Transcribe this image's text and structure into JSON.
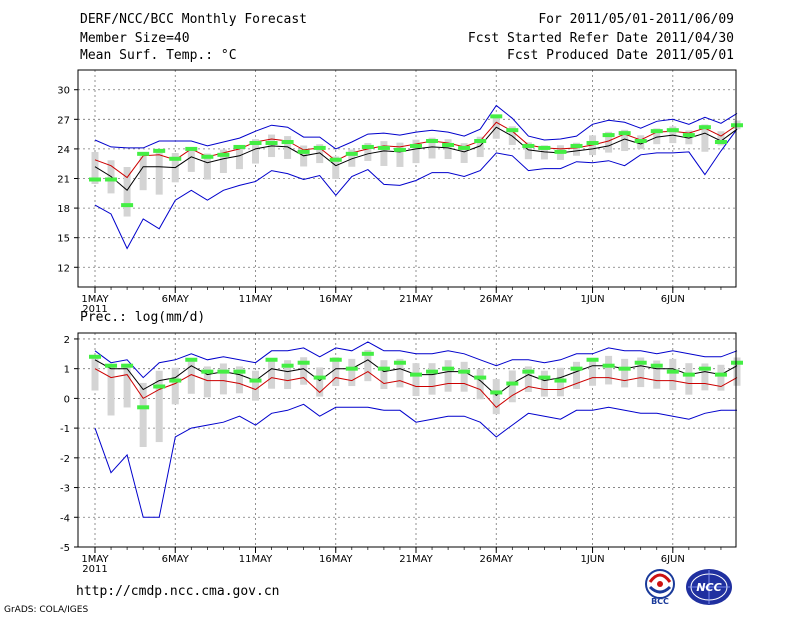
{
  "header": {
    "title": "DERF/NCC/BCC Monthly Forecast",
    "member_size": "Member Size=40",
    "variable": "Mean Surf. Temp.: °C",
    "forecast_period": "For 2011/05/01-2011/06/09",
    "started_refer": "Fcst Started Refer Date 2011/04/30",
    "produced": "Fcst Produced Date 2011/05/01"
  },
  "footer": {
    "url": "http://cmdp.ncc.cma.gov.cn",
    "credit": "GrADS: COLA/IGES",
    "logo_bcc": "BCC",
    "logo_ncc": "NCC"
  },
  "colors": {
    "ensemble_mean": "#000000",
    "spread_bounds": "#0000cc",
    "median": "#cc0000",
    "observed": "#44ee44",
    "member_range": "#d4d4d4"
  },
  "chart_data": [
    {
      "type": "line",
      "title": "Mean Surf. Temp.: °C",
      "xlabel": "",
      "ylabel": "°C",
      "ylim": [
        10,
        32
      ],
      "yticks": [
        "30",
        "27",
        "24",
        "21",
        "18",
        "15",
        "12"
      ],
      "ytick_values": [
        30,
        27,
        24,
        21,
        18,
        15,
        12
      ],
      "xticks": [
        "1MAY",
        "6MAY",
        "11MAY",
        "16MAY",
        "21MAY",
        "26MAY",
        "1JUN",
        "6JUN"
      ],
      "xtick_days": [
        1,
        6,
        11,
        16,
        21,
        26,
        32,
        37
      ],
      "year_label": "2011",
      "days": 40,
      "series": [
        {
          "name": "ensemble mean",
          "values": [
            22.2,
            21.2,
            19.8,
            22.2,
            22.2,
            22.1,
            23.2,
            22.6,
            23,
            23.3,
            24,
            24.3,
            24.2,
            23.3,
            23.6,
            22.3,
            23,
            23.5,
            23.8,
            23.7,
            24,
            24.2,
            24.1,
            23.7,
            24.3,
            26.2,
            25.3,
            23.9,
            23.7,
            23.6,
            23.8,
            24,
            24.3,
            25,
            24.5,
            25.2,
            25.4,
            25.1,
            25.6,
            24.8,
            26
          ]
        },
        {
          "name": "upper",
          "values": [
            24.9,
            24.2,
            24.1,
            24.1,
            24.8,
            24.8,
            24.8,
            24.3,
            24.7,
            25.1,
            25.8,
            26.4,
            26.2,
            25.2,
            25.2,
            24,
            24.7,
            25.5,
            25.6,
            25.4,
            25.7,
            25.9,
            25.7,
            25.3,
            26,
            28.4,
            27.1,
            25.3,
            24.9,
            25,
            25.3,
            26.5,
            26.9,
            26.7,
            26.1,
            26.8,
            27,
            26.5,
            27.2,
            26.6,
            27.6
          ]
        },
        {
          "name": "lower",
          "values": [
            18.3,
            17.4,
            13.9,
            16.9,
            15.9,
            18.8,
            19.8,
            18.8,
            19.8,
            20.3,
            20.7,
            21.8,
            21.5,
            20.9,
            21.3,
            19.3,
            21.2,
            21.9,
            20.4,
            20.3,
            20.8,
            21.6,
            21.6,
            21.2,
            21.8,
            23.6,
            23.3,
            21.8,
            22,
            22,
            22.7,
            22.6,
            22.8,
            22.3,
            23.4,
            23.6,
            23.6,
            23.7,
            21.4,
            23.8,
            26
          ]
        },
        {
          "name": "median",
          "values": [
            22.9,
            22.3,
            21.1,
            23.3,
            23.4,
            22.9,
            24,
            23.2,
            23.6,
            24,
            24.7,
            25,
            24.8,
            23.9,
            24.1,
            22.8,
            23.6,
            24,
            24.3,
            24.2,
            24.5,
            24.8,
            24.6,
            24.2,
            24.8,
            26.7,
            25.8,
            24.4,
            24.1,
            24,
            24.1,
            24.4,
            24.8,
            25.5,
            24.9,
            25.7,
            25.8,
            25.6,
            26.1,
            25.3,
            26.4
          ]
        },
        {
          "name": "observed",
          "values": [
            20.9,
            20.9,
            18.3,
            23.5,
            23.8,
            23,
            24,
            23.2,
            23.4,
            24.2,
            24.6,
            24.6,
            24.7,
            23.7,
            24.1,
            22.9,
            23.5,
            24.2,
            24.1,
            23.9,
            24.3,
            24.8,
            24.4,
            24.1,
            24.8,
            27.3,
            25.9,
            24.3,
            24.1,
            23.7,
            24.3,
            24.6,
            25.4,
            25.6,
            24.8,
            25.8,
            25.9,
            25.4,
            26.2,
            24.7,
            26.4
          ]
        }
      ]
    },
    {
      "type": "line",
      "title": "Prec.: log(mm/d)",
      "xlabel": "",
      "ylabel": "log(mm/d)",
      "ylim": [
        -5,
        2.2
      ],
      "yticks": [
        "2",
        "1",
        "0",
        "-1",
        "-2",
        "-3",
        "-4",
        "-5"
      ],
      "ytick_values": [
        2,
        1,
        0,
        -1,
        -2,
        -3,
        -4,
        -5
      ],
      "xticks": [
        "1MAY",
        "6MAY",
        "11MAY",
        "16MAY",
        "21MAY",
        "26MAY",
        "1JUN",
        "6JUN"
      ],
      "xtick_days": [
        1,
        6,
        11,
        16,
        21,
        26,
        32,
        37
      ],
      "year_label": "2011",
      "days": 40,
      "series": [
        {
          "name": "ensemble mean",
          "values": [
            1.3,
            1,
            1,
            0.3,
            0.6,
            0.7,
            1.1,
            0.8,
            0.9,
            0.8,
            0.6,
            1,
            0.9,
            1,
            0.6,
            1,
            1,
            1.3,
            0.9,
            1,
            0.8,
            0.8,
            0.9,
            0.9,
            0.6,
            0.1,
            0.5,
            0.8,
            0.6,
            0.7,
            0.9,
            1.1,
            1.1,
            1,
            1.1,
            1,
            1,
            0.8,
            0.9,
            0.8,
            1.1
          ]
        },
        {
          "name": "upper",
          "values": [
            1.6,
            1.2,
            1.3,
            0.7,
            1.2,
            1.3,
            1.5,
            1.3,
            1.4,
            1.3,
            1.2,
            1.6,
            1.6,
            1.7,
            1.4,
            1.7,
            1.6,
            1.9,
            1.6,
            1.6,
            1.5,
            1.5,
            1.6,
            1.5,
            1.3,
            1.1,
            1.3,
            1.3,
            1.2,
            1.3,
            1.5,
            1.5,
            1.7,
            1.6,
            1.6,
            1.5,
            1.6,
            1.5,
            1.4,
            1.4,
            1.6
          ]
        },
        {
          "name": "lower",
          "values": [
            -1,
            -2.5,
            -1.9,
            -4,
            -4,
            -1.3,
            -1,
            -0.9,
            -0.8,
            -0.6,
            -0.9,
            -0.5,
            -0.4,
            -0.2,
            -0.6,
            -0.3,
            -0.3,
            -0.3,
            -0.4,
            -0.4,
            -0.8,
            -0.7,
            -0.6,
            -0.6,
            -0.8,
            -1.3,
            -0.9,
            -0.5,
            -0.6,
            -0.7,
            -0.4,
            -0.4,
            -0.3,
            -0.4,
            -0.5,
            -0.5,
            -0.6,
            -0.7,
            -0.5,
            -0.4,
            -0.4
          ]
        },
        {
          "name": "median",
          "values": [
            1,
            0.7,
            0.8,
            0,
            0.3,
            0.5,
            0.8,
            0.6,
            0.6,
            0.5,
            0.3,
            0.7,
            0.6,
            0.7,
            0.2,
            0.7,
            0.6,
            0.9,
            0.5,
            0.6,
            0.4,
            0.4,
            0.5,
            0.5,
            0.3,
            -0.3,
            0.1,
            0.4,
            0.3,
            0.3,
            0.5,
            0.7,
            0.7,
            0.6,
            0.7,
            0.6,
            0.6,
            0.5,
            0.5,
            0.4,
            0.7
          ]
        },
        {
          "name": "observed",
          "values": [
            1.4,
            1.1,
            1.1,
            -0.3,
            0.4,
            0.6,
            1.3,
            0.9,
            0.9,
            0.9,
            0.6,
            1.3,
            1.1,
            1.2,
            0.7,
            1.3,
            1,
            1.5,
            1,
            1.2,
            0.8,
            0.9,
            1,
            0.9,
            0.7,
            0.2,
            0.5,
            0.9,
            0.7,
            0.6,
            1,
            1.3,
            1.1,
            1,
            1.2,
            1.1,
            0.9,
            0.8,
            1,
            0.8,
            1.2
          ]
        }
      ]
    }
  ]
}
